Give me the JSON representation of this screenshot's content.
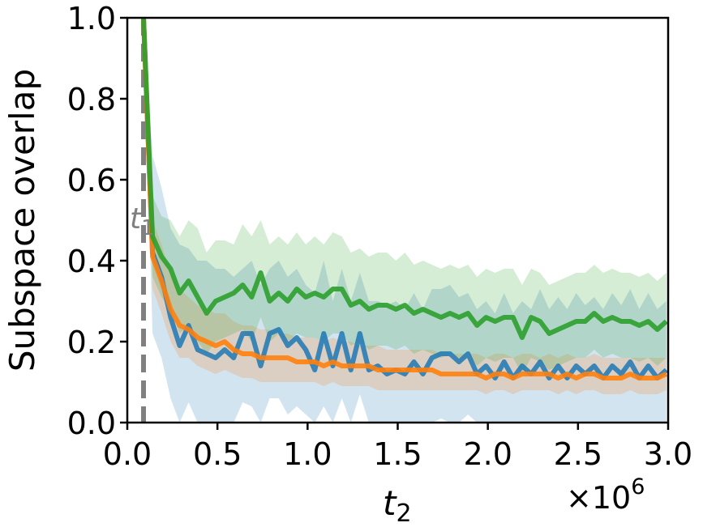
{
  "chart_data": {
    "type": "line",
    "xlabel_main": "t",
    "xlabel_sub": "2",
    "ylabel": "Subspace overlap",
    "x_multiplier": "×10",
    "x_multiplier_exp": "6",
    "vline_label_main": "t",
    "vline_label_sub": "1",
    "vline_x": 0.09,
    "xlim": [
      0.0,
      3.0
    ],
    "ylim": [
      0.0,
      1.0
    ],
    "xticks": [
      "0.0",
      "0.5",
      "1.0",
      "1.5",
      "2.0",
      "2.5",
      "3.0"
    ],
    "yticks": [
      "0.0",
      "0.2",
      "0.4",
      "0.6",
      "0.8",
      "1.0"
    ],
    "grid": false,
    "vline_color": "#808080",
    "x": [
      0.09,
      0.14,
      0.19,
      0.24,
      0.29,
      0.34,
      0.39,
      0.44,
      0.49,
      0.54,
      0.59,
      0.64,
      0.69,
      0.74,
      0.79,
      0.84,
      0.89,
      0.94,
      0.99,
      1.04,
      1.09,
      1.14,
      1.19,
      1.24,
      1.29,
      1.34,
      1.39,
      1.44,
      1.49,
      1.54,
      1.59,
      1.64,
      1.69,
      1.74,
      1.79,
      1.84,
      1.89,
      1.94,
      1.99,
      2.04,
      2.09,
      2.14,
      2.19,
      2.24,
      2.29,
      2.34,
      2.39,
      2.44,
      2.49,
      2.54,
      2.59,
      2.64,
      2.69,
      2.74,
      2.79,
      2.84,
      2.89,
      2.94,
      2.99
    ],
    "series": [
      {
        "color": "#1f77b4",
        "values": [
          1.0,
          0.42,
          0.36,
          0.26,
          0.19,
          0.24,
          0.18,
          0.17,
          0.16,
          0.18,
          0.16,
          0.22,
          0.22,
          0.14,
          0.22,
          0.23,
          0.19,
          0.21,
          0.18,
          0.13,
          0.22,
          0.14,
          0.22,
          0.13,
          0.22,
          0.13,
          0.14,
          0.12,
          0.13,
          0.12,
          0.15,
          0.12,
          0.16,
          0.17,
          0.17,
          0.15,
          0.17,
          0.12,
          0.14,
          0.11,
          0.15,
          0.11,
          0.14,
          0.12,
          0.15,
          0.11,
          0.14,
          0.11,
          0.14,
          0.12,
          0.14,
          0.11,
          0.14,
          0.12,
          0.15,
          0.11,
          0.14,
          0.11,
          0.13
        ],
        "upper": [
          1.0,
          0.66,
          0.58,
          0.48,
          0.44,
          0.43,
          0.4,
          0.4,
          0.38,
          0.38,
          0.36,
          0.38,
          0.4,
          0.34,
          0.38,
          0.4,
          0.36,
          0.38,
          0.34,
          0.32,
          0.4,
          0.3,
          0.38,
          0.3,
          0.37,
          0.3,
          0.3,
          0.29,
          0.3,
          0.28,
          0.32,
          0.28,
          0.33,
          0.33,
          0.34,
          0.31,
          0.32,
          0.28,
          0.3,
          0.27,
          0.32,
          0.27,
          0.3,
          0.28,
          0.33,
          0.28,
          0.31,
          0.28,
          0.32,
          0.29,
          0.31,
          0.28,
          0.32,
          0.29,
          0.33,
          0.28,
          0.32,
          0.28,
          0.3
        ],
        "lower": [
          1.0,
          0.22,
          0.16,
          0.06,
          0.0,
          0.05,
          0.0,
          0.0,
          0.0,
          0.0,
          0.0,
          0.05,
          0.04,
          0.0,
          0.06,
          0.06,
          0.02,
          0.04,
          0.02,
          0.0,
          0.04,
          0.0,
          0.06,
          0.0,
          0.07,
          0.0,
          0.0,
          0.0,
          0.0,
          0.0,
          0.0,
          0.0,
          0.0,
          0.01,
          0.0,
          0.0,
          0.02,
          0.0,
          0.0,
          0.0,
          0.0,
          0.0,
          0.0,
          0.0,
          0.0,
          0.0,
          0.0,
          0.0,
          0.0,
          0.0,
          0.0,
          0.0,
          0.0,
          0.0,
          0.0,
          0.0,
          0.0,
          0.0,
          0.0
        ]
      },
      {
        "color": "#ff7f0e",
        "values": [
          1.0,
          0.41,
          0.35,
          0.28,
          0.24,
          0.23,
          0.21,
          0.2,
          0.19,
          0.2,
          0.18,
          0.17,
          0.17,
          0.16,
          0.16,
          0.16,
          0.16,
          0.15,
          0.15,
          0.15,
          0.14,
          0.15,
          0.14,
          0.14,
          0.14,
          0.14,
          0.13,
          0.13,
          0.13,
          0.13,
          0.13,
          0.13,
          0.13,
          0.12,
          0.12,
          0.12,
          0.12,
          0.12,
          0.11,
          0.12,
          0.12,
          0.11,
          0.12,
          0.12,
          0.12,
          0.12,
          0.11,
          0.12,
          0.11,
          0.12,
          0.12,
          0.11,
          0.11,
          0.11,
          0.12,
          0.11,
          0.11,
          0.11,
          0.12
        ],
        "upper": [
          1.0,
          0.5,
          0.44,
          0.37,
          0.33,
          0.31,
          0.29,
          0.28,
          0.27,
          0.27,
          0.25,
          0.24,
          0.24,
          0.23,
          0.23,
          0.22,
          0.22,
          0.21,
          0.21,
          0.21,
          0.2,
          0.21,
          0.2,
          0.2,
          0.19,
          0.19,
          0.19,
          0.18,
          0.18,
          0.18,
          0.18,
          0.18,
          0.18,
          0.17,
          0.17,
          0.17,
          0.17,
          0.17,
          0.16,
          0.17,
          0.17,
          0.16,
          0.17,
          0.17,
          0.16,
          0.17,
          0.16,
          0.17,
          0.16,
          0.16,
          0.17,
          0.16,
          0.16,
          0.16,
          0.16,
          0.16,
          0.16,
          0.16,
          0.16
        ],
        "lower": [
          1.0,
          0.33,
          0.27,
          0.2,
          0.16,
          0.16,
          0.14,
          0.13,
          0.12,
          0.13,
          0.12,
          0.11,
          0.11,
          0.1,
          0.1,
          0.1,
          0.1,
          0.1,
          0.1,
          0.1,
          0.09,
          0.1,
          0.09,
          0.09,
          0.09,
          0.09,
          0.08,
          0.08,
          0.08,
          0.08,
          0.08,
          0.08,
          0.08,
          0.08,
          0.08,
          0.08,
          0.08,
          0.08,
          0.07,
          0.08,
          0.08,
          0.07,
          0.08,
          0.08,
          0.08,
          0.08,
          0.07,
          0.08,
          0.07,
          0.08,
          0.08,
          0.07,
          0.07,
          0.07,
          0.08,
          0.07,
          0.07,
          0.07,
          0.08
        ]
      },
      {
        "color": "#2ca02c",
        "values": [
          1.0,
          0.46,
          0.41,
          0.38,
          0.32,
          0.35,
          0.31,
          0.27,
          0.3,
          0.31,
          0.32,
          0.34,
          0.31,
          0.37,
          0.3,
          0.32,
          0.3,
          0.33,
          0.31,
          0.32,
          0.31,
          0.33,
          0.33,
          0.29,
          0.3,
          0.28,
          0.29,
          0.29,
          0.28,
          0.29,
          0.27,
          0.28,
          0.27,
          0.26,
          0.27,
          0.26,
          0.27,
          0.24,
          0.26,
          0.25,
          0.26,
          0.26,
          0.21,
          0.26,
          0.25,
          0.22,
          0.23,
          0.24,
          0.25,
          0.25,
          0.27,
          0.25,
          0.26,
          0.25,
          0.25,
          0.24,
          0.25,
          0.23,
          0.25
        ],
        "upper": [
          1.0,
          0.56,
          0.51,
          0.5,
          0.46,
          0.5,
          0.48,
          0.42,
          0.45,
          0.45,
          0.44,
          0.49,
          0.46,
          0.5,
          0.44,
          0.46,
          0.44,
          0.47,
          0.44,
          0.46,
          0.44,
          0.47,
          0.46,
          0.42,
          0.43,
          0.41,
          0.42,
          0.42,
          0.4,
          0.42,
          0.39,
          0.4,
          0.39,
          0.38,
          0.39,
          0.38,
          0.39,
          0.36,
          0.38,
          0.37,
          0.38,
          0.38,
          0.34,
          0.38,
          0.37,
          0.34,
          0.35,
          0.36,
          0.37,
          0.37,
          0.39,
          0.37,
          0.38,
          0.37,
          0.37,
          0.36,
          0.37,
          0.35,
          0.37
        ],
        "lower": [
          1.0,
          0.36,
          0.31,
          0.28,
          0.22,
          0.24,
          0.2,
          0.17,
          0.2,
          0.21,
          0.22,
          0.23,
          0.2,
          0.26,
          0.2,
          0.22,
          0.2,
          0.22,
          0.21,
          0.21,
          0.2,
          0.22,
          0.22,
          0.19,
          0.2,
          0.18,
          0.19,
          0.19,
          0.18,
          0.19,
          0.17,
          0.18,
          0.17,
          0.16,
          0.17,
          0.16,
          0.17,
          0.14,
          0.16,
          0.15,
          0.16,
          0.16,
          0.12,
          0.16,
          0.15,
          0.13,
          0.14,
          0.15,
          0.16,
          0.16,
          0.18,
          0.16,
          0.17,
          0.16,
          0.16,
          0.15,
          0.16,
          0.14,
          0.16
        ]
      }
    ]
  }
}
